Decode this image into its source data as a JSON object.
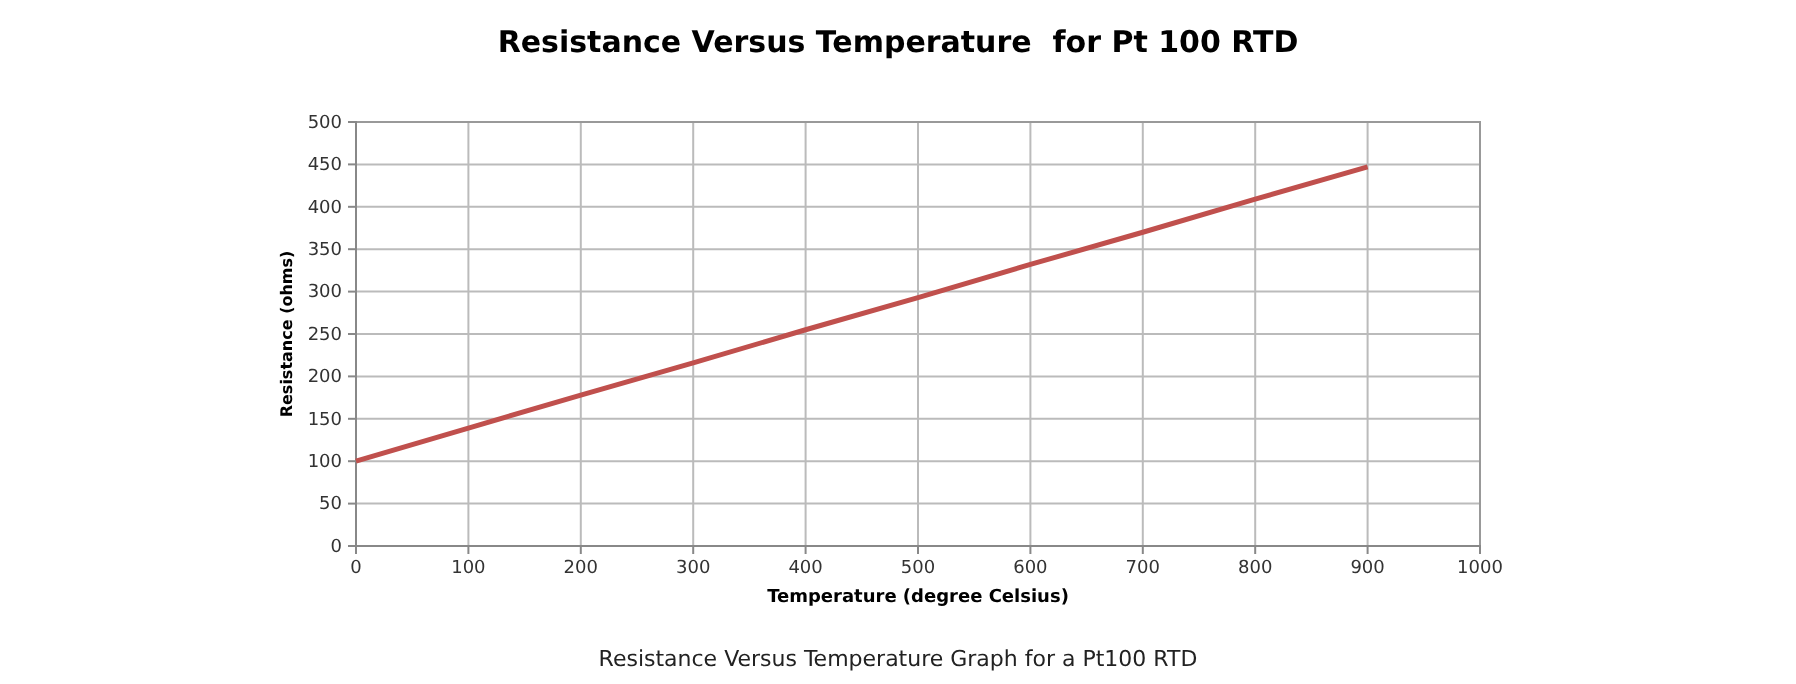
{
  "chart_data": {
    "type": "line",
    "title": "Resistance Versus Temperature  for Pt 100 RTD",
    "xlabel": "Temperature (degree Celsius)",
    "ylabel": "Resistance (ohms)",
    "annotations": [
      "Resistance Versus Temperature Graph for a Pt100 RTD"
    ],
    "x": [
      0,
      100,
      200,
      300,
      400,
      500,
      600,
      700,
      800,
      900
    ],
    "series": [
      {
        "color": "#c0504d",
        "values": [
          100,
          139,
          178,
          216,
          255,
          293,
          332,
          370,
          409,
          447
        ]
      }
    ],
    "xlim": [
      0,
      1000
    ],
    "xticks": [
      0,
      100,
      200,
      300,
      400,
      500,
      600,
      700,
      800,
      900,
      1000
    ],
    "ylim": [
      0,
      500
    ],
    "yticks": [
      0,
      50,
      100,
      150,
      200,
      250,
      300,
      350,
      400,
      450,
      500
    ],
    "grid": true,
    "marker": "none",
    "line_style": "solid"
  }
}
